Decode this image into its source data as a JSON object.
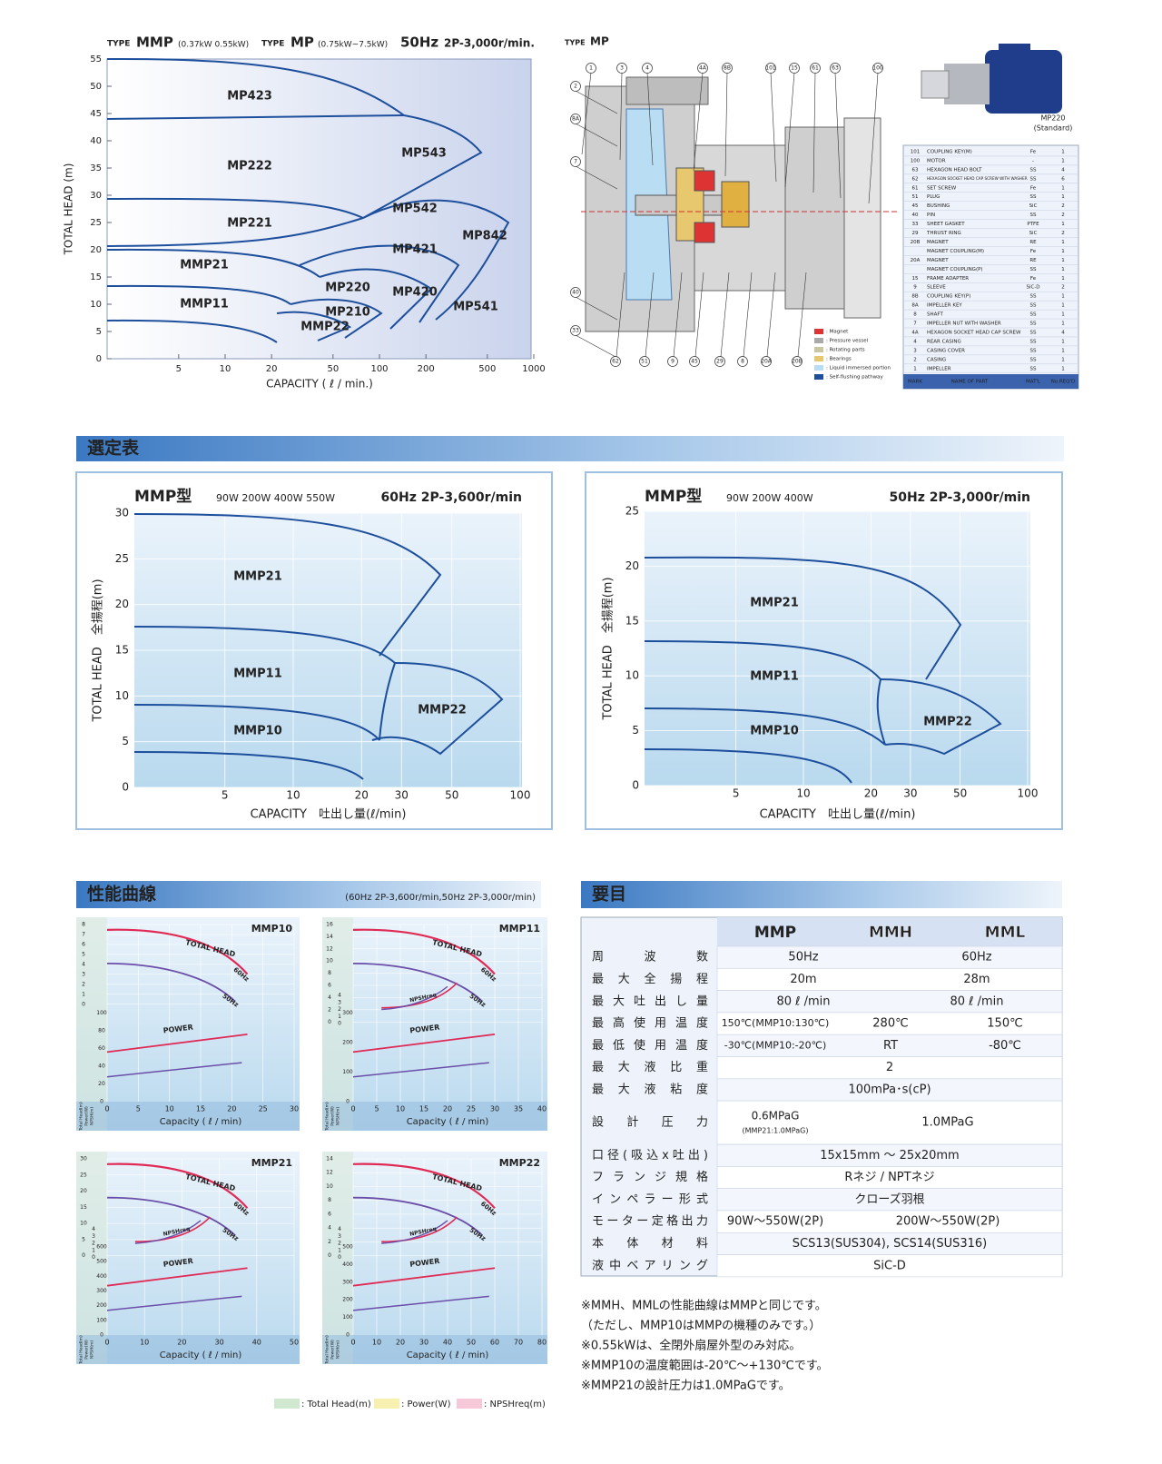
{
  "top_chart": {
    "type_word": "TYPE",
    "model1": "MMP",
    "range1": "(0.37kW  0.55kW)",
    "model2": "MP",
    "range2": "(0.75kW~7.5kW)",
    "freq": "50Hz",
    "speed": "2P-3,000r/min.",
    "ylabel": "TOTAL HEAD (m)",
    "xlabel": "CAPACITY ( ℓ / min.)",
    "yticks": [
      0,
      5,
      10,
      15,
      20,
      25,
      30,
      35,
      40,
      45,
      50,
      55
    ],
    "xticks": [
      5,
      10,
      20,
      50,
      100,
      200,
      500,
      1000
    ],
    "regions": [
      "MP423",
      "MP222",
      "MP221",
      "MMP21",
      "MMP11",
      "MP543",
      "MP542",
      "MP421",
      "MP842",
      "MP220",
      "MP210",
      "MMP22",
      "MP420",
      "MP541"
    ]
  },
  "diagram": {
    "title_type": "TYPE",
    "title": "MP",
    "callouts_top": [
      "1",
      "3",
      "4",
      "4A",
      "8B",
      "101",
      "15",
      "61",
      "63",
      "100"
    ],
    "callouts_left": [
      "2",
      "8A",
      "7",
      "40",
      "33"
    ],
    "callouts_bottom": [
      "62",
      "51",
      "9",
      "45",
      "29",
      "8",
      "20A",
      "20B"
    ],
    "legend": [
      ": Magnet",
      ": Pressure vessel",
      ": Rotating parts",
      ": Bearings",
      ": Liquid immersed portion",
      ": Self-flushing pathway"
    ]
  },
  "photo": {
    "caption1": "MP220",
    "caption2": "(Standard)"
  },
  "parts_table": {
    "header": [
      "MARK",
      "NAME OF PART",
      "MAT'L",
      "No.REQ'D"
    ],
    "rows": [
      [
        "101",
        "COUPLING KEY(M)",
        "Fe",
        "1"
      ],
      [
        "100",
        "MOTOR",
        "-",
        "1"
      ],
      [
        "63",
        "HEXAGON HEAD BOLT",
        "SS",
        "4"
      ],
      [
        "62",
        "HEXAGON SOCKET HEAD CAP SCREW WITH WASHER",
        "SS",
        "6"
      ],
      [
        "61",
        "SET SCREW",
        "Fe",
        "1"
      ],
      [
        "51",
        "PLUG",
        "SS",
        "1"
      ],
      [
        "45",
        "BUSHING",
        "SiC",
        "2"
      ],
      [
        "40",
        "PIN",
        "SS",
        "2"
      ],
      [
        "33",
        "SHEET GASKET",
        "PTFE",
        "1"
      ],
      [
        "29",
        "THRUST RING",
        "SiC",
        "2"
      ],
      [
        "20B",
        "MAGNET",
        "RE",
        "1"
      ],
      [
        "MAGNET COUPLING(M)",
        "Fe",
        "1"
      ],
      [
        "20A",
        "MAGNET",
        "RE",
        "1"
      ],
      [
        "MAGNET COUPLING(P)",
        "SS",
        "1"
      ],
      [
        "15",
        "FRAME ADAPTER",
        "Fe",
        "1"
      ],
      [
        "9",
        "SLEEVE",
        "SiC-D",
        "2"
      ],
      [
        "8B",
        "COUPLING KEY(P)",
        "SS",
        "1"
      ],
      [
        "8A",
        "IMPELLER KEY",
        "SS",
        "1"
      ],
      [
        "8",
        "SHAFT",
        "SS",
        "1"
      ],
      [
        "7",
        "IMPELLER NUT WITH WASHER",
        "SS",
        "1"
      ],
      [
        "4A",
        "HEXAGON SOCKET HEAD CAP SCREW",
        "SS",
        "4"
      ],
      [
        "4",
        "REAR CASING",
        "SS",
        "1"
      ],
      [
        "3",
        "CASING COVER",
        "SS",
        "1"
      ],
      [
        "2",
        "CASING",
        "SS",
        "1"
      ],
      [
        "1",
        "IMPELLER",
        "SS",
        "1"
      ]
    ]
  },
  "section1": "選定表",
  "select_charts": [
    {
      "title": "MMP型",
      "watts": "90W 200W 400W 550W",
      "freq": "60Hz 2P-3,600r/min",
      "yticks": [
        0,
        5,
        10,
        15,
        20,
        25,
        30
      ],
      "xticks": [
        5,
        10,
        20,
        30,
        50,
        100
      ],
      "ylabel": "TOTAL HEAD　全揚程(m)",
      "xlabel": "CAPACITY　吐出し量(ℓ/min)",
      "regions": [
        "MMP21",
        "MMP11",
        "MMP10",
        "MMP22"
      ]
    },
    {
      "title": "MMP型",
      "watts": "90W 200W 400W",
      "freq": "50Hz 2P-3,000r/min",
      "yticks": [
        0,
        5,
        10,
        15,
        20,
        25
      ],
      "xticks": [
        5,
        10,
        20,
        30,
        50,
        100
      ],
      "ylabel": "TOTAL HEAD　全揚程(m)",
      "xlabel": "CAPACITY　吐出し量(ℓ/min)",
      "regions": [
        "MMP21",
        "MMP11",
        "MMP10",
        "MMP22"
      ]
    }
  ],
  "section2": "性能曲線",
  "section2_sub": "(60Hz 2P-3,600r/min,50Hz 2P-3,000r/min)",
  "perf_charts": [
    {
      "title": "MMP10",
      "head": [
        8,
        7,
        6,
        5,
        4,
        3,
        2,
        1,
        0
      ],
      "power": [
        100,
        80,
        60,
        40,
        20,
        0
      ],
      "xticks": [
        0,
        5,
        10,
        15,
        20,
        25,
        30
      ]
    },
    {
      "title": "MMP11",
      "head": [
        16,
        14,
        12,
        10,
        8,
        6,
        4,
        2,
        0
      ],
      "npsh": [
        4,
        3,
        2,
        1,
        0
      ],
      "power": [
        300,
        200,
        100,
        0
      ],
      "xticks": [
        0,
        5,
        10,
        15,
        20,
        25,
        30,
        35,
        40
      ]
    },
    {
      "title": "MMP21",
      "head": [
        30,
        25,
        20,
        15,
        10,
        5,
        0
      ],
      "npsh": [
        4,
        3,
        2,
        1,
        0
      ],
      "power": [
        600,
        500,
        400,
        300,
        200,
        100,
        0
      ],
      "xticks": [
        0,
        10,
        20,
        30,
        40,
        50
      ]
    },
    {
      "title": "MMP22",
      "head": [
        14,
        12,
        10,
        8,
        6,
        4,
        2,
        0
      ],
      "npsh": [
        4,
        3,
        2,
        1,
        0
      ],
      "power": [
        500,
        400,
        300,
        200,
        100,
        0
      ],
      "xticks": [
        0,
        10,
        20,
        30,
        40,
        50,
        60,
        70,
        80
      ]
    }
  ],
  "perf_labels": {
    "head": "TOTAL HEAD",
    "hz60": "60Hz",
    "hz50": "50Hz",
    "power": "POWER",
    "npsh": "NPSHreq",
    "xlabel": "Capacity ( ℓ / min)",
    "axis_names": [
      "Total Head(m)",
      "Power(W)",
      "NPSH(m)"
    ]
  },
  "perf_legend": [
    ": Total Head(m)",
    ": Power(W)",
    ": NPSHreq(m)"
  ],
  "section3": "要目",
  "spec_table": {
    "header": [
      "MMP",
      "MMH",
      "MML"
    ],
    "rows": [
      {
        "label": "周波数",
        "cells": [
          "50Hz",
          "60Hz"
        ]
      },
      {
        "label": "最大全揚程",
        "cells": [
          "20m",
          "28m"
        ]
      },
      {
        "label": "最大吐出し量",
        "cells": [
          "80 ℓ /min",
          "80 ℓ /min"
        ]
      },
      {
        "label": "最高使用温度",
        "cells": [
          "150℃(MMP10:130℃)",
          "280℃",
          "150℃"
        ]
      },
      {
        "label": "最低使用温度",
        "cells": [
          "-30℃(MMP10:-20℃)",
          "RT",
          "-80℃"
        ]
      },
      {
        "label": "最大液比重",
        "cells": [
          "2"
        ]
      },
      {
        "label": "最大液粘度",
        "cells": [
          "100mPa･s(cP)"
        ]
      },
      {
        "label": "設計圧力",
        "cells": [
          "0.6MPaG",
          "(MMP21:1.0MPaG)",
          "1.0MPaG"
        ]
      },
      {
        "label": "口径(吸込x吐出)",
        "cells": [
          "15x15mm ～ 25x20mm"
        ]
      },
      {
        "label": "フランジ規格",
        "cells": [
          "Rネジ / NPTネジ"
        ]
      },
      {
        "label": "インペラー形式",
        "cells": [
          "クローズ羽根"
        ]
      },
      {
        "label": "モーター定格出力",
        "cells": [
          "90W～550W(2P)",
          "200W～550W(2P)"
        ]
      },
      {
        "label": "本体材料",
        "cells": [
          "SCS13(SUS304), SCS14(SUS316)"
        ]
      },
      {
        "label": "液中ベアリング",
        "cells": [
          "SiC-D"
        ]
      }
    ]
  },
  "notes": [
    "※MMH、MMLの性能曲線はMMPと同じです。",
    "（ただし、MMP10はMMPの機種のみです。）",
    "※0.55kWは、全閉外扇屋外型のみ対応。",
    "※MMP10の温度範囲は-20℃～+130℃です。",
    "※MMP21の設計圧力は1.0MPaGです。"
  ]
}
